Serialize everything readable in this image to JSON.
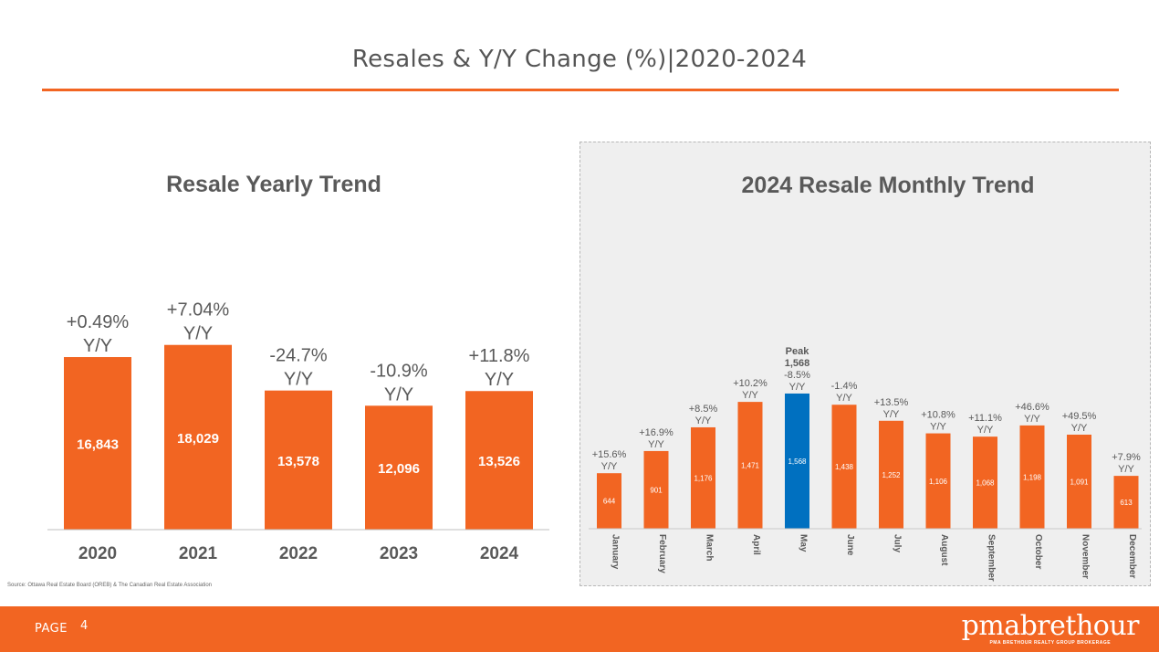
{
  "slide": {
    "title": "Resales & Y/Y  Change (%)|2020-2024",
    "source": "Source: Ottawa Real Estate Board (OREB) & The Canadian Real Estate Association"
  },
  "footer": {
    "page_label": "PAGE",
    "page_number": "4",
    "brand_name": "pmabrethour",
    "brand_tagline": "PMA BRETHOUR REALTY GROUP BROKERAGE"
  },
  "colors": {
    "accent": "#F26522",
    "highlight": "#0070C0",
    "text_dark": "#595959",
    "panel_bg": "#efefef"
  },
  "chart_data": [
    {
      "type": "bar",
      "title": "Resale Yearly Trend",
      "categories": [
        "2020",
        "2021",
        "2022",
        "2023",
        "2024"
      ],
      "values": [
        16843,
        18029,
        13578,
        12096,
        13526
      ],
      "value_labels": [
        "16,843",
        "18,029",
        "13,578",
        "12,096",
        "13,526"
      ],
      "annotations": [
        [
          "+0.49%",
          "Y/Y"
        ],
        [
          "+7.04%",
          "Y/Y"
        ],
        [
          "-24.7%",
          "Y/Y"
        ],
        [
          "-10.9%",
          "Y/Y"
        ],
        [
          "+11.8%",
          "Y/Y"
        ]
      ],
      "ylim": [
        0,
        20500
      ],
      "grid": false,
      "color": "#F26522"
    },
    {
      "type": "bar",
      "title": "2024 Resale Monthly Trend",
      "categories": [
        "January",
        "February",
        "March",
        "April",
        "May",
        "June",
        "July",
        "August",
        "September",
        "October",
        "November",
        "December"
      ],
      "values": [
        644,
        901,
        1176,
        1471,
        1568,
        1438,
        1252,
        1106,
        1068,
        1198,
        1091,
        613
      ],
      "value_labels": [
        "644",
        "901",
        "1,176",
        "1,471",
        "1,568",
        "1,438",
        "1,252",
        "1,106",
        "1,068",
        "1,198",
        "1,091",
        "613"
      ],
      "annotations": [
        [
          "+15.6%",
          "Y/Y"
        ],
        [
          "+16.9%",
          "Y/Y"
        ],
        [
          "+8.5%",
          "Y/Y"
        ],
        [
          "+10.2%",
          "Y/Y"
        ],
        [
          "-8.5%",
          "Y/Y"
        ],
        [
          "-1.4%",
          "Y/Y"
        ],
        [
          "+13.5%",
          "Y/Y"
        ],
        [
          "+10.8%",
          "Y/Y"
        ],
        [
          "+11.1%",
          "Y/Y"
        ],
        [
          "+46.6%",
          "Y/Y"
        ],
        [
          "+49.5%",
          "Y/Y"
        ],
        [
          "+7.9%",
          "Y/Y"
        ]
      ],
      "highlight_index": 4,
      "highlight_note": [
        "Peak",
        "1,568"
      ],
      "ylim": [
        0,
        2150
      ],
      "grid": false,
      "color": "#F26522",
      "highlight_color": "#0070C0"
    }
  ]
}
